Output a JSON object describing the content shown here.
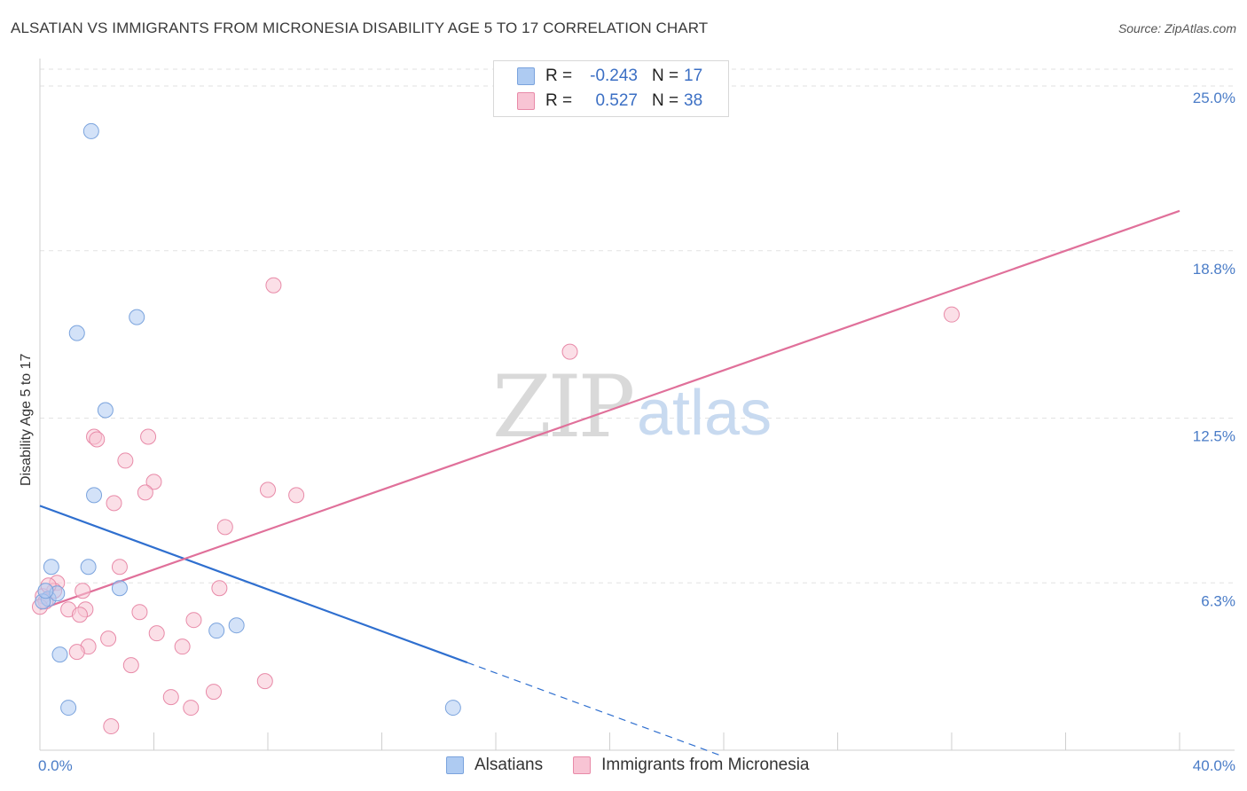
{
  "title": "ALSATIAN VS IMMIGRANTS FROM MICRONESIA DISABILITY AGE 5 TO 17 CORRELATION CHART",
  "source": "Source: ZipAtlas.com",
  "watermark": {
    "zip": "ZIP",
    "atlas": "atlas"
  },
  "legend": {
    "rows": [
      {
        "r_label": "R =",
        "r_value": "-0.243",
        "n_label": "N =",
        "n_value": "17",
        "color": "#aecbf2",
        "border": "#7aa3dd"
      },
      {
        "r_label": "R =",
        "r_value": "0.527",
        "n_label": "N =",
        "n_value": "38",
        "color": "#f8c4d4",
        "border": "#e88aa8"
      }
    ]
  },
  "bottom_legend": [
    {
      "label": "Alsatians",
      "color": "#aecbf2",
      "border": "#7aa3dd"
    },
    {
      "label": "Immigrants from Micronesia",
      "color": "#f8c4d4",
      "border": "#e88aa8"
    }
  ],
  "chart_data": {
    "type": "scatter",
    "title": "ALSATIAN VS IMMIGRANTS FROM MICRONESIA DISABILITY AGE 5 TO 17 CORRELATION CHART",
    "xlabel": "",
    "ylabel": "Disability Age 5 to 17",
    "xlim": [
      0,
      40
    ],
    "ylim": [
      0,
      25.0
    ],
    "x_tick_labels": {
      "left": "0.0%",
      "right": "40.0%"
    },
    "y_ticks": [
      {
        "value": 6.3,
        "label": "6.3%"
      },
      {
        "value": 12.5,
        "label": "12.5%"
      },
      {
        "value": 18.8,
        "label": "18.8%"
      },
      {
        "value": 25.0,
        "label": "25.0%"
      }
    ],
    "series": [
      {
        "name": "Alsatians",
        "color": "#aecbf2",
        "stroke": "#7aa3dd",
        "trend_color": "#2f6fcf",
        "points": [
          [
            1.8,
            23.3
          ],
          [
            3.4,
            16.3
          ],
          [
            1.3,
            15.7
          ],
          [
            2.3,
            12.8
          ],
          [
            1.9,
            9.6
          ],
          [
            0.4,
            6.9
          ],
          [
            1.7,
            6.9
          ],
          [
            2.8,
            6.1
          ],
          [
            0.3,
            5.7
          ],
          [
            0.6,
            5.9
          ],
          [
            0.1,
            5.6
          ],
          [
            6.9,
            4.7
          ],
          [
            6.2,
            4.5
          ],
          [
            0.7,
            3.6
          ],
          [
            1.0,
            1.6
          ],
          [
            14.5,
            1.6
          ],
          [
            0.2,
            6.0
          ]
        ],
        "trend": {
          "x_start": 0,
          "y_start": 9.2,
          "x_solid_end": 15.0,
          "x_dash_end": 24.0
        }
      },
      {
        "name": "Immigrants from Micronesia",
        "color": "#f8c4d4",
        "stroke": "#e88aa8",
        "trend_color": "#e0709a",
        "points": [
          [
            8.2,
            17.5
          ],
          [
            32.0,
            16.4
          ],
          [
            18.6,
            15.0
          ],
          [
            1.9,
            11.8
          ],
          [
            2.0,
            11.7
          ],
          [
            3.8,
            11.8
          ],
          [
            3.0,
            10.9
          ],
          [
            4.0,
            10.1
          ],
          [
            3.7,
            9.7
          ],
          [
            8.0,
            9.8
          ],
          [
            9.0,
            9.6
          ],
          [
            2.6,
            9.3
          ],
          [
            6.5,
            8.4
          ],
          [
            2.8,
            6.9
          ],
          [
            0.6,
            6.3
          ],
          [
            1.5,
            6.0
          ],
          [
            6.3,
            6.1
          ],
          [
            0.5,
            6.0
          ],
          [
            0.1,
            5.8
          ],
          [
            0.2,
            5.6
          ],
          [
            0.0,
            5.4
          ],
          [
            1.0,
            5.3
          ],
          [
            1.6,
            5.3
          ],
          [
            3.5,
            5.2
          ],
          [
            5.4,
            4.9
          ],
          [
            1.4,
            5.1
          ],
          [
            4.1,
            4.4
          ],
          [
            2.4,
            4.2
          ],
          [
            1.7,
            3.9
          ],
          [
            5.0,
            3.9
          ],
          [
            1.3,
            3.7
          ],
          [
            3.2,
            3.2
          ],
          [
            7.9,
            2.6
          ],
          [
            6.1,
            2.2
          ],
          [
            4.6,
            2.0
          ],
          [
            5.3,
            1.6
          ],
          [
            2.5,
            0.9
          ],
          [
            0.3,
            6.2
          ]
        ],
        "trend": {
          "x_start": 0,
          "y_start": 5.3,
          "x_end": 40.0,
          "y_end": 20.3
        }
      }
    ]
  }
}
